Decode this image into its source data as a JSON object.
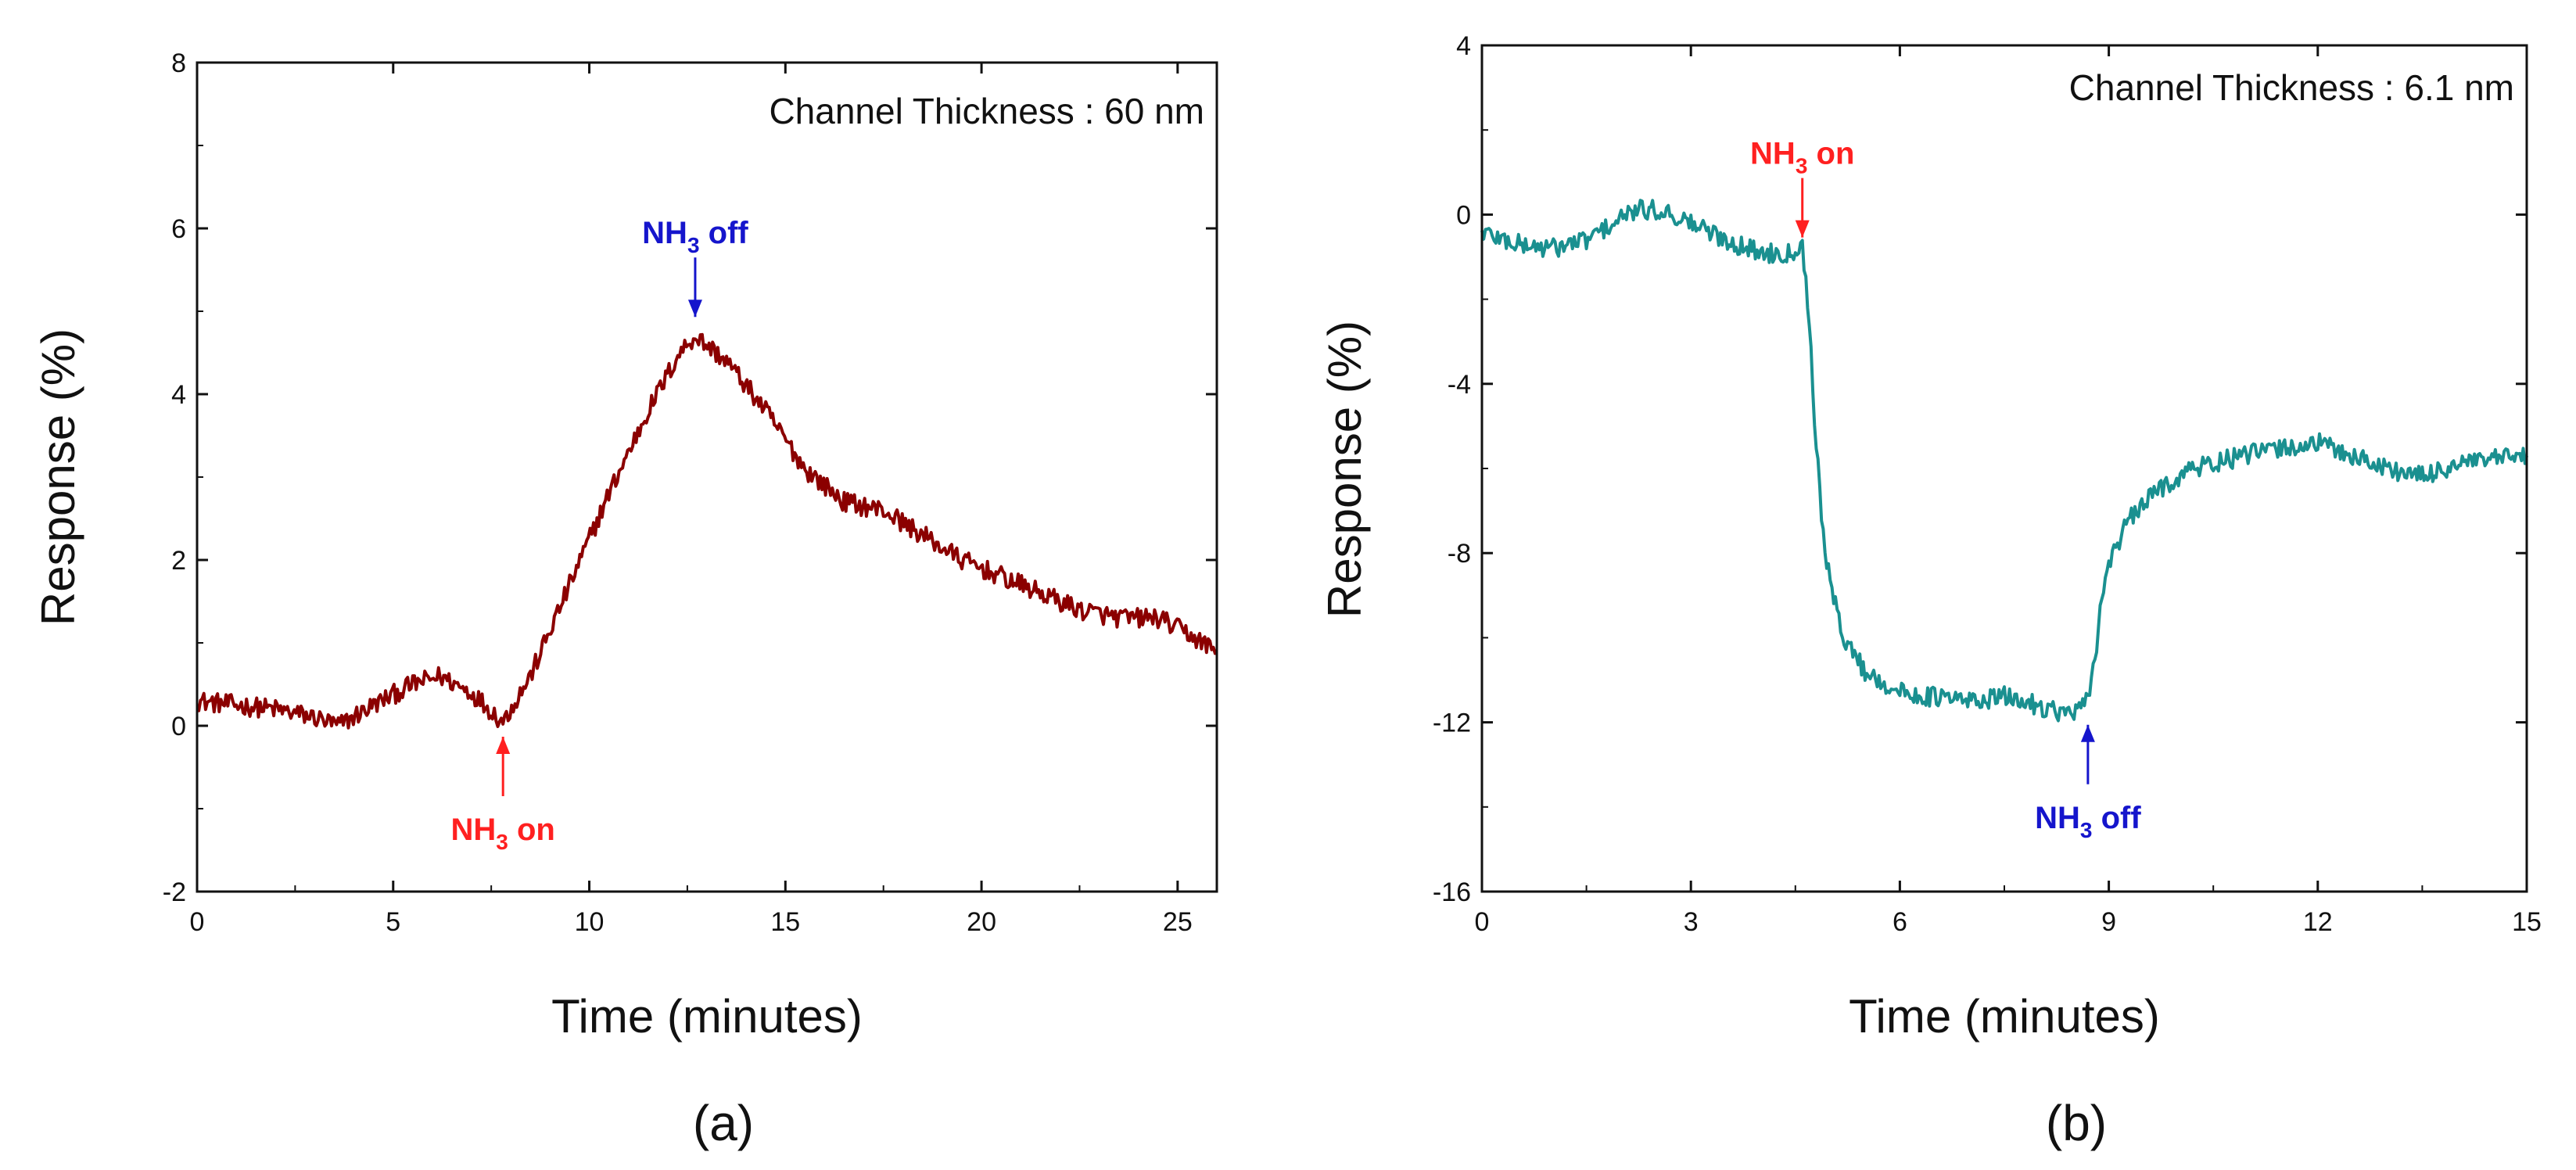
{
  "chart_data": [
    {
      "type": "line",
      "panel_label": "(a)",
      "xlabel": "Time (minutes)",
      "ylabel": "Response (%)",
      "xlim": [
        0,
        26
      ],
      "ylim": [
        -2,
        8
      ],
      "xticks": [
        0,
        5,
        10,
        15,
        20,
        25
      ],
      "yticks": [
        -2,
        0,
        2,
        4,
        6,
        8
      ],
      "line_color": "#8b0000",
      "annotation": "Channel Thickness : 60 nm",
      "markers": [
        {
          "base": "NH",
          "sub": "3",
          "tail": " on",
          "x": 7.8,
          "y": 0.0,
          "color": "#ff2020",
          "direction": "up",
          "placement": "below"
        },
        {
          "base": "NH",
          "sub": "3",
          "tail": " off",
          "x": 12.7,
          "y": 4.8,
          "color": "#1515cc",
          "direction": "down",
          "placement": "above"
        }
      ],
      "series": [
        {
          "name": "Response",
          "x": [
            0,
            1,
            2,
            3,
            3.6,
            4.5,
            5.5,
            6.2,
            7.0,
            7.8,
            8.5,
            9.5,
            10.5,
            11.5,
            12.3,
            12.7,
            13.5,
            14.5,
            15.5,
            16.5,
            17.5,
            18.5,
            19.5,
            20.5,
            21.5,
            22.5,
            23.5,
            24.5,
            25.3,
            26
          ],
          "values": [
            0.3,
            0.25,
            0.2,
            0.1,
            0.0,
            0.25,
            0.5,
            0.6,
            0.4,
            0.05,
            0.6,
            1.7,
            2.8,
            3.8,
            4.5,
            4.7,
            4.4,
            3.8,
            3.1,
            2.7,
            2.6,
            2.3,
            2.0,
            1.8,
            1.6,
            1.4,
            1.3,
            1.3,
            1.1,
            0.9
          ]
        }
      ]
    },
    {
      "type": "line",
      "panel_label": "(b)",
      "xlabel": "Time (minutes)",
      "ylabel": "Response (%)",
      "xlim": [
        0,
        15
      ],
      "ylim": [
        -16,
        4
      ],
      "xticks": [
        0,
        3,
        6,
        9,
        12,
        15
      ],
      "yticks": [
        -16,
        -12,
        -8,
        -4,
        0,
        4
      ],
      "line_color": "#1a9090",
      "annotation": "Channel Thickness : 6.1 nm",
      "markers": [
        {
          "base": "NH",
          "sub": "3",
          "tail": " on",
          "x": 4.6,
          "y": -0.8,
          "color": "#ff2020",
          "direction": "down",
          "placement": "above"
        },
        {
          "base": "NH",
          "sub": "3",
          "tail": " off",
          "x": 8.7,
          "y": -11.8,
          "color": "#1515cc",
          "direction": "up",
          "placement": "below"
        }
      ],
      "series": [
        {
          "name": "Response",
          "x": [
            0,
            0.5,
            1.0,
            1.5,
            1.8,
            2.2,
            2.6,
            3.0,
            3.5,
            4.0,
            4.4,
            4.6,
            4.7,
            4.8,
            4.9,
            5.0,
            5.2,
            5.5,
            6.0,
            6.5,
            7.0,
            7.5,
            8.0,
            8.4,
            8.6,
            8.7,
            8.8,
            8.9,
            9.0,
            9.3,
            9.7,
            10.2,
            10.7,
            11.2,
            11.6,
            12.0,
            12.5,
            13.0,
            13.5,
            14.0,
            14.5,
            15.0
          ],
          "values": [
            -0.4,
            -0.7,
            -0.8,
            -0.6,
            -0.3,
            0.1,
            0.1,
            -0.2,
            -0.6,
            -0.9,
            -0.9,
            -0.7,
            -2.5,
            -5.5,
            -7.5,
            -8.8,
            -10.0,
            -10.8,
            -11.3,
            -11.4,
            -11.5,
            -11.4,
            -11.6,
            -11.8,
            -11.7,
            -11.5,
            -10.5,
            -9.0,
            -8.2,
            -7.2,
            -6.5,
            -6.0,
            -5.8,
            -5.6,
            -5.5,
            -5.4,
            -5.7,
            -6.0,
            -6.2,
            -5.9,
            -5.8,
            -5.7
          ]
        }
      ]
    }
  ]
}
